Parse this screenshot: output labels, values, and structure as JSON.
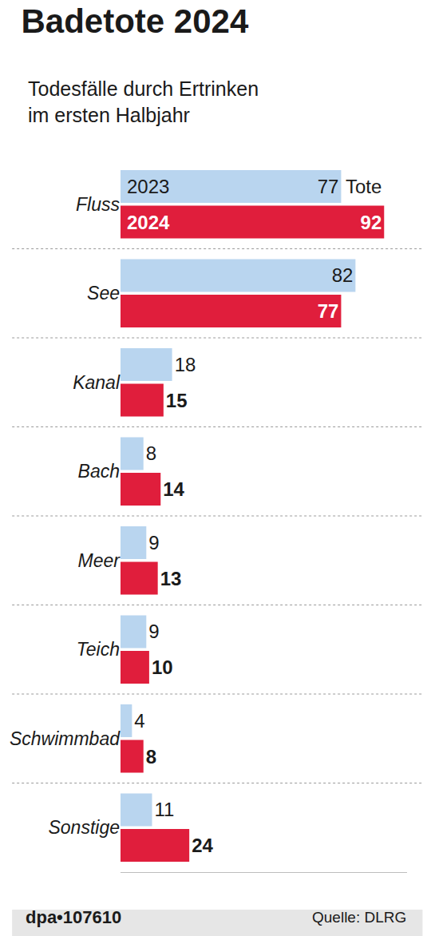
{
  "chart_data": {
    "type": "bar",
    "orientation": "horizontal",
    "title": "Badetote 2024",
    "subtitle": "Todesfälle durch Ertrinken im ersten Halbjahr",
    "unit": "Tote",
    "categories": [
      "Fluss",
      "See",
      "Kanal",
      "Bach",
      "Meer",
      "Teich",
      "Schwimmbad",
      "Sonstige"
    ],
    "series": [
      {
        "name": "2023",
        "color": "#b9d5ef",
        "values": [
          77,
          82,
          18,
          8,
          9,
          9,
          4,
          11
        ]
      },
      {
        "name": "2024",
        "color": "#e01e3c",
        "values": [
          92,
          77,
          15,
          14,
          13,
          10,
          8,
          24
        ]
      }
    ],
    "xlim": [
      0,
      100
    ],
    "xticks": [],
    "tick_labels": "y",
    "data_labels": true,
    "grid": false,
    "credit": "dpa•107610",
    "source": "Quelle: DLRG"
  }
}
